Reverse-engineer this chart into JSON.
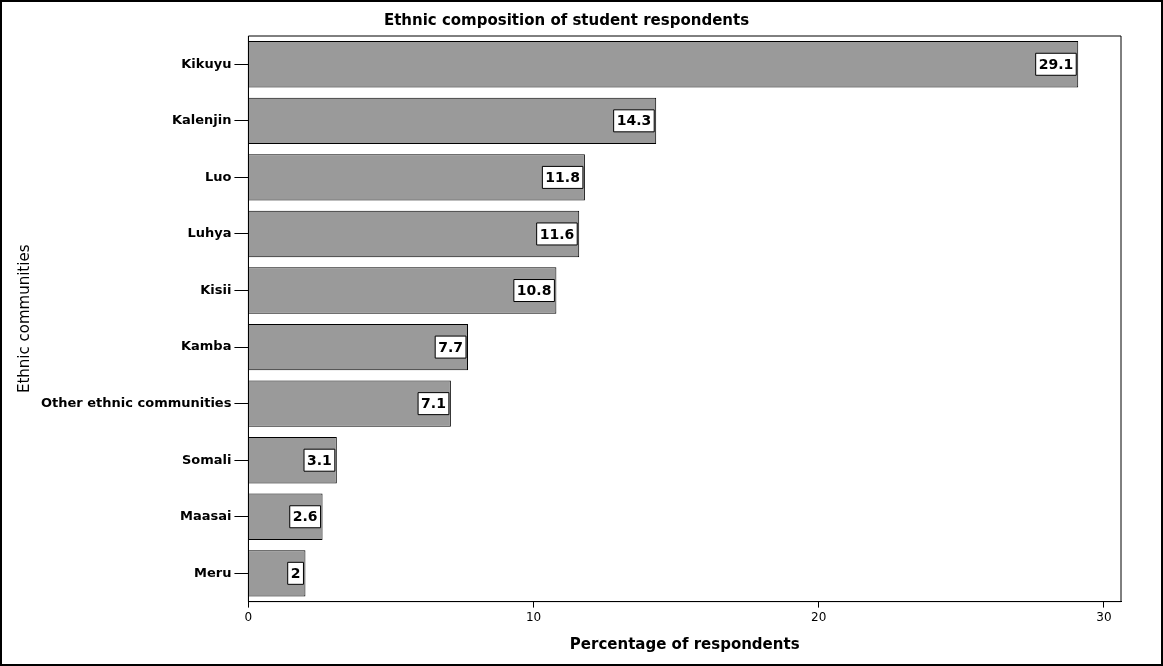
{
  "chart_data": {
    "type": "bar",
    "orientation": "horizontal",
    "title": "Ethnic composition of student respondents",
    "xlabel": "Percentage of respondents",
    "ylabel": "Ethnic communities",
    "categories": [
      "Kikuyu",
      "Kalenjin",
      "Luo",
      "Luhya",
      "Kisii",
      "Kamba",
      "Other ethnic communities",
      "Somali",
      "Maasai",
      "Meru"
    ],
    "values": [
      29.1,
      14.3,
      11.8,
      11.6,
      10.8,
      7.7,
      7.1,
      3.1,
      2.6,
      2
    ],
    "color": "#9a9a9a",
    "xlim": [
      0,
      30.6
    ],
    "xticks": [
      0,
      10,
      20,
      30
    ],
    "grid": false,
    "legend": false,
    "data_labels": true
  }
}
